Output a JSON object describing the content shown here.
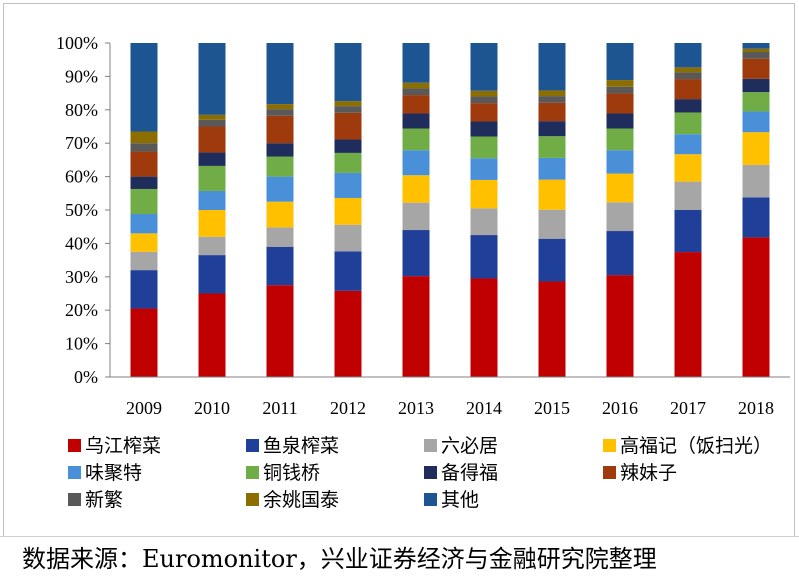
{
  "source_text": "数据来源：Euromonitor，兴业证券经济与金融研究院整理",
  "chart_data": {
    "type": "bar",
    "stacked": true,
    "percent": true,
    "categories": [
      "2009",
      "2010",
      "2011",
      "2012",
      "2013",
      "2014",
      "2015",
      "2016",
      "2017",
      "2018"
    ],
    "y_ticks": [
      "0%",
      "10%",
      "20%",
      "30%",
      "40%",
      "50%",
      "60%",
      "70%",
      "80%",
      "90%",
      "100%"
    ],
    "ylim": [
      0,
      100
    ],
    "grid": false,
    "legend_position": "bottom",
    "series": [
      {
        "name": "乌江榨菜",
        "color": "#c00000",
        "values": [
          20.5,
          25,
          27.5,
          25.8,
          30.2,
          29.5,
          28.6,
          30.5,
          37.4,
          41.8
        ]
      },
      {
        "name": "鱼泉榨菜",
        "color": "#1f3f99",
        "values": [
          11.5,
          11.5,
          11.5,
          11.8,
          13.8,
          13,
          12.8,
          13.2,
          12.6,
          12
        ]
      },
      {
        "name": "六必居",
        "color": "#a6a6a6",
        "values": [
          5.5,
          5.5,
          5.8,
          8,
          8.2,
          8,
          8.7,
          8.6,
          8.5,
          9.7
        ]
      },
      {
        "name": "高福记（饭扫光）",
        "color": "#ffc000",
        "values": [
          5.5,
          8,
          7.7,
          8,
          8.2,
          8.5,
          9,
          8.6,
          8.2,
          9.8
        ]
      },
      {
        "name": "味聚特",
        "color": "#4a90d9",
        "values": [
          5.8,
          5.7,
          7.5,
          7.5,
          7.5,
          6.5,
          6.5,
          7,
          6,
          6.2
        ]
      },
      {
        "name": "铜钱桥",
        "color": "#70ad47",
        "values": [
          7.5,
          7.5,
          6,
          6,
          6.5,
          6.5,
          6.5,
          6.5,
          6.5,
          5.8
        ]
      },
      {
        "name": "备得福",
        "color": "#1f2d5c",
        "values": [
          3.7,
          4,
          4,
          4,
          4.5,
          4.5,
          4.5,
          4.5,
          4,
          4
        ]
      },
      {
        "name": "辣妹子",
        "color": "#9e3a0c",
        "values": [
          7.5,
          7.8,
          8.2,
          8,
          5.5,
          5.5,
          5.5,
          6,
          6,
          6
        ]
      },
      {
        "name": "新繁",
        "color": "#595959",
        "values": [
          2.5,
          2,
          2,
          2,
          2,
          2,
          2,
          2,
          2,
          2
        ]
      },
      {
        "name": "余姚国泰",
        "color": "#8c6d00",
        "values": [
          3.5,
          1.5,
          1.5,
          1.5,
          1.7,
          1.7,
          1.7,
          2,
          1.5,
          1
        ]
      },
      {
        "name": "其他",
        "color": "#1d5593",
        "values": [
          26.5,
          21.5,
          18.3,
          17.4,
          11.9,
          14.3,
          14.2,
          11.1,
          7.3,
          1.7
        ]
      }
    ]
  }
}
